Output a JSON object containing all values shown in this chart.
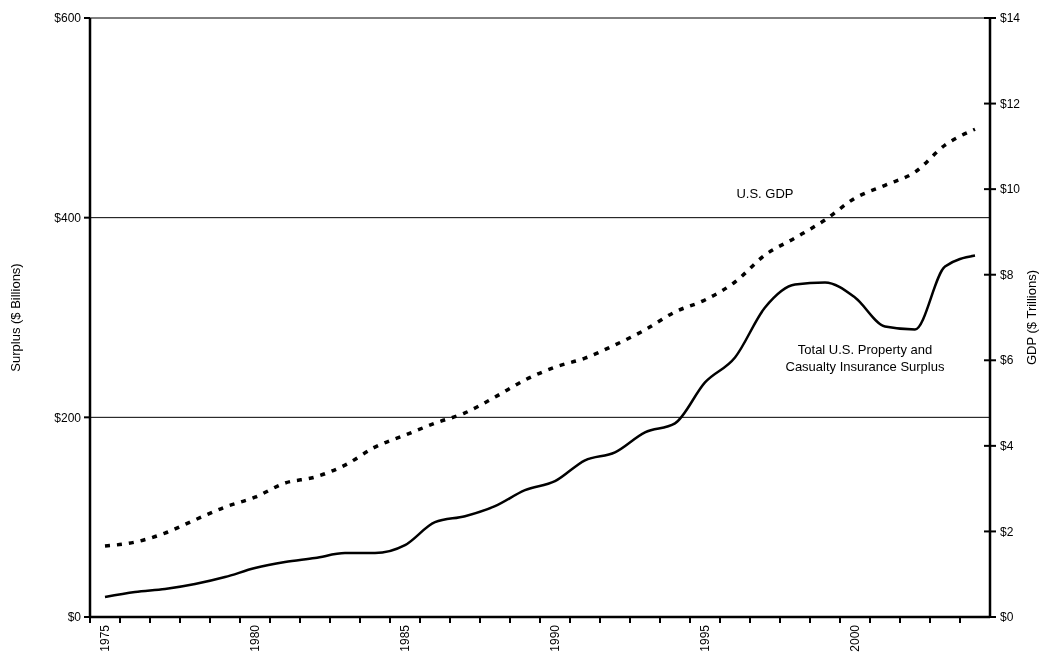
{
  "chart_data": {
    "type": "line",
    "ylabel": "Surplus ($ Billions)",
    "y2label": "GDP ($ Trillions)",
    "x": [
      1975,
      1976,
      1977,
      1978,
      1979,
      1980,
      1981,
      1982,
      1983,
      1984,
      1985,
      1986,
      1987,
      1988,
      1989,
      1990,
      1991,
      1992,
      1993,
      1994,
      1995,
      1996,
      1997,
      1998,
      1999,
      2000,
      2001,
      2002,
      2003,
      2004
    ],
    "xlim": [
      1974.5,
      2004.5
    ],
    "xticks": [
      1975,
      1980,
      1985,
      1990,
      1995,
      2000
    ],
    "ylim": [
      0,
      600
    ],
    "yticks": [
      {
        "value": 0,
        "label": "$0"
      },
      {
        "value": 200,
        "label": "$200"
      },
      {
        "value": 400,
        "label": "$400"
      },
      {
        "value": 600,
        "label": "$600"
      }
    ],
    "y2lim": [
      0,
      14
    ],
    "y2ticks": [
      {
        "value": 0,
        "label": "$0"
      },
      {
        "value": 2,
        "label": "$2"
      },
      {
        "value": 4,
        "label": "$4"
      },
      {
        "value": 6,
        "label": "$6"
      },
      {
        "value": 8,
        "label": "$8"
      },
      {
        "value": 10,
        "label": "$10"
      },
      {
        "value": 12,
        "label": "$12"
      },
      {
        "value": 14,
        "label": "$14"
      }
    ],
    "grid": "y",
    "legend": false,
    "series": [
      {
        "name": "Total U.S. Property and Casualty Insurance Surplus",
        "color": "#000000",
        "line_style": "solid",
        "values": [
          20,
          25,
          28,
          33,
          40,
          49,
          55,
          59,
          64,
          64,
          72,
          95,
          101,
          111,
          127,
          136,
          157,
          165,
          185,
          194,
          235,
          260,
          310,
          333,
          335,
          320,
          291,
          288,
          351,
          362
        ]
      },
      {
        "name": "U.S. GDP",
        "color": "#000000",
        "line_style": "dotted",
        "axis": "y2",
        "values": [
          1.66,
          1.75,
          1.96,
          2.27,
          2.57,
          2.8,
          3.13,
          3.27,
          3.55,
          3.97,
          4.25,
          4.53,
          4.77,
          5.14,
          5.54,
          5.84,
          6.05,
          6.36,
          6.71,
          7.13,
          7.41,
          7.83,
          8.46,
          8.86,
          9.28,
          9.79,
          10.09,
          10.4,
          11.03,
          11.4
        ]
      }
    ]
  }
}
